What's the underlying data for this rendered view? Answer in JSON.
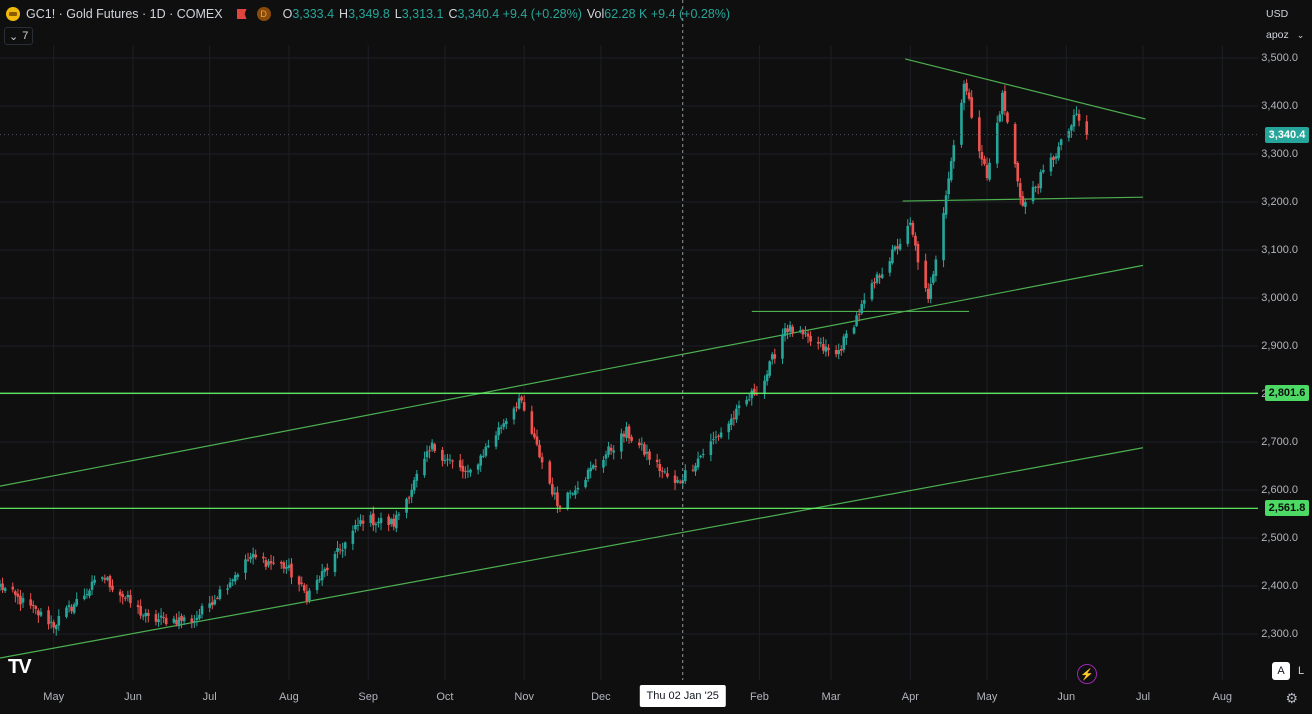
{
  "header": {
    "symbol_title": "GC1! · Gold Futures · 1D · COMEX",
    "d_badge": "D",
    "ohlc": [
      {
        "key": "O",
        "value": "3,333.4"
      },
      {
        "key": "H",
        "value": "3,349.8"
      },
      {
        "key": "L",
        "value": "3,313.1"
      },
      {
        "key": "C",
        "value": "3,340.4 +9.4 (+0.28%)"
      },
      {
        "key": "Vol",
        "value": "62.28 K +9.4 (+0.28%)"
      }
    ],
    "collapse_label": "7",
    "icons": {
      "symbol": "gold-coin-icon",
      "flag": "red-flag-icon",
      "collapse": "chevron-down-icon"
    }
  },
  "price_scale": {
    "currency": "USD",
    "second_selector": "apoz",
    "labels": [
      "3,500.0",
      "3,400.0",
      "3,300.0",
      "3,200.0",
      "3,100.0",
      "3,000.0",
      "2,900.0",
      "2,800.0",
      "2,700.0",
      "2,600.0",
      "2,500.0",
      "2,400.0",
      "2,300.0"
    ],
    "last_price": "3,340.4",
    "level_1": "2,801.6",
    "level_2": "2,561.8"
  },
  "time_axis": {
    "labels": [
      "May",
      "Jun",
      "Jul",
      "Aug",
      "Sep",
      "Oct",
      "Nov",
      "Dec",
      "Feb",
      "Mar",
      "Apr",
      "May",
      "Jun",
      "Jul",
      "Aug"
    ],
    "crosshair_date": "Thu 02 Jan '25"
  },
  "footer": {
    "auto_button": "A",
    "log_button": "L",
    "logo_text": "TV"
  },
  "colors": {
    "background": "#0f0f0f",
    "up": "#26a69a",
    "down": "#ef5350",
    "trendline": "#4caf50",
    "level_line": "#66ff66",
    "last_price_badge": "#26a69a",
    "level_badge": "#4cd964"
  },
  "chart_data": {
    "type": "candlestick",
    "title": "GC1! · Gold Futures · 1D · COMEX",
    "ylim": [
      2240,
      3560
    ],
    "x_range": [
      "2024-04-10",
      "2025-08-31"
    ],
    "y_ticks": [
      2300,
      2400,
      2500,
      2600,
      2700,
      2800,
      2900,
      3000,
      3100,
      3200,
      3300,
      3400,
      3500
    ],
    "grid": true,
    "legend": "top-left",
    "close_path": [
      [
        "2024-04-10",
        2400
      ],
      [
        "2024-05-01",
        2320
      ],
      [
        "2024-05-20",
        2420
      ],
      [
        "2024-06-07",
        2330
      ],
      [
        "2024-06-25",
        2330
      ],
      [
        "2024-07-17",
        2460
      ],
      [
        "2024-07-31",
        2440
      ],
      [
        "2024-08-08",
        2380
      ],
      [
        "2024-08-30",
        2540
      ],
      [
        "2024-09-11",
        2530
      ],
      [
        "2024-09-26",
        2690
      ],
      [
        "2024-10-10",
        2630
      ],
      [
        "2024-10-30",
        2790
      ],
      [
        "2024-11-14",
        2570
      ],
      [
        "2024-11-25",
        2630
      ],
      [
        "2024-12-11",
        2720
      ],
      [
        "2024-12-30",
        2610
      ],
      [
        "2025-01-20",
        2740
      ],
      [
        "2025-02-03",
        2830
      ],
      [
        "2025-02-11",
        2940
      ],
      [
        "2025-03-03",
        2880
      ],
      [
        "2025-03-20",
        3050
      ],
      [
        "2025-04-01",
        3150
      ],
      [
        "2025-04-08",
        2990
      ],
      [
        "2025-04-22",
        3450
      ],
      [
        "2025-05-01",
        3250
      ],
      [
        "2025-05-07",
        3420
      ],
      [
        "2025-05-15",
        3190
      ],
      [
        "2025-05-30",
        3320
      ],
      [
        "2025-06-05",
        3380
      ],
      [
        "2025-06-09",
        3340.4
      ]
    ],
    "trendlines": [
      {
        "from": [
          "2024-04-10",
          2608
        ],
        "to": [
          "2025-07-01",
          3068
        ]
      },
      {
        "from": [
          "2024-04-10",
          2250
        ],
        "to": [
          "2025-07-01",
          2688
        ]
      },
      {
        "from": [
          "2025-03-30",
          3498
        ],
        "to": [
          "2025-07-02",
          3373
        ]
      },
      {
        "from": [
          "2025-03-29",
          3202
        ],
        "to": [
          "2025-07-01",
          3210
        ]
      },
      {
        "from": [
          "2025-01-29",
          2972
        ],
        "to": [
          "2025-04-24",
          2972
        ]
      }
    ],
    "horizontal_levels": [
      2801.6,
      2561.8
    ],
    "crosshair_x": "2025-01-02",
    "last_close": 3340.4
  }
}
